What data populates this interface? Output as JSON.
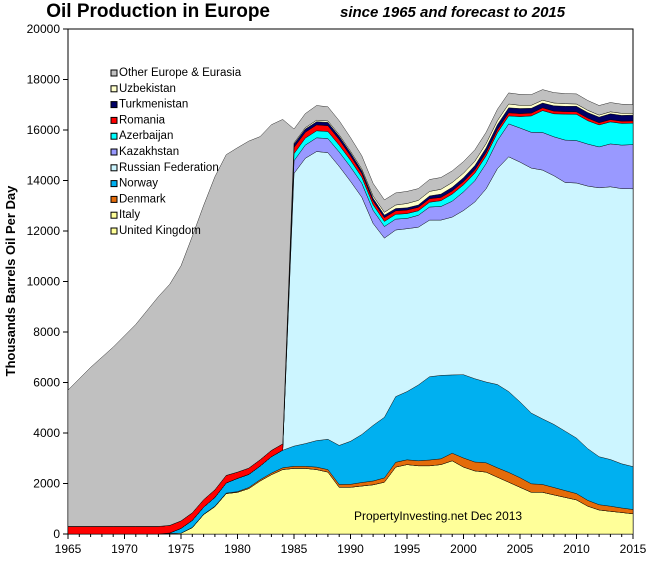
{
  "chart_data": {
    "type": "area",
    "stacked": true,
    "title": "Oil Production in Europe",
    "subtitle": "since 1965 and forecast to 2015",
    "ylabel": "Thousands Barrels Oil Per Day",
    "xlabel": "",
    "xlim": [
      1965,
      2015
    ],
    "ylim": [
      0,
      20000
    ],
    "x_ticks": [
      1965,
      1970,
      1975,
      1980,
      1985,
      1990,
      1995,
      2000,
      2005,
      2010,
      2015
    ],
    "y_ticks": [
      0,
      2000,
      4000,
      6000,
      8000,
      10000,
      12000,
      14000,
      16000,
      18000,
      20000
    ],
    "grid": false,
    "legend_position": "top-left",
    "annotation": "PropertyInvesting.net  Dec 2013",
    "x": [
      1965,
      1967,
      1969,
      1971,
      1973,
      1974,
      1975,
      1976,
      1977,
      1978,
      1979,
      1980,
      1981,
      1982,
      1983,
      1984,
      1985,
      1986,
      1987,
      1988,
      1989,
      1990,
      1991,
      1992,
      1993,
      1994,
      1995,
      1996,
      1997,
      1998,
      1999,
      2000,
      2001,
      2002,
      2003,
      2004,
      2005,
      2006,
      2007,
      2008,
      2009,
      2010,
      2011,
      2012,
      2013,
      2014,
      2015
    ],
    "series": [
      {
        "name": "United Kingdom",
        "color": "#ffff99",
        "values": [
          0,
          0,
          0,
          0,
          0,
          20,
          30,
          250,
          770,
          1080,
          1600,
          1650,
          1800,
          2100,
          2350,
          2550,
          2600,
          2600,
          2550,
          2450,
          1850,
          1850,
          1900,
          1950,
          2050,
          2650,
          2750,
          2700,
          2700,
          2750,
          2900,
          2650,
          2500,
          2450,
          2250,
          2050,
          1850,
          1650,
          1650,
          1550,
          1450,
          1350,
          1100,
          950,
          900,
          850,
          800
        ]
      },
      {
        "name": "Italy",
        "color": "#ffff99",
        "values": [
          0,
          0,
          0,
          0,
          0,
          0,
          0,
          0,
          0,
          0,
          0,
          0,
          0,
          0,
          0,
          0,
          0,
          0,
          0,
          0,
          0,
          0,
          0,
          0,
          0,
          0,
          0,
          0,
          0,
          0,
          0,
          0,
          0,
          0,
          0,
          0,
          0,
          0,
          0,
          0,
          0,
          0,
          0,
          0,
          0,
          0,
          0
        ]
      },
      {
        "name": "Denmark",
        "color": "#e46c0a",
        "values": [
          0,
          0,
          0,
          0,
          0,
          0,
          0,
          10,
          10,
          20,
          20,
          30,
          40,
          50,
          60,
          70,
          80,
          80,
          100,
          100,
          110,
          120,
          140,
          150,
          170,
          190,
          190,
          200,
          230,
          230,
          300,
          360,
          350,
          370,
          370,
          390,
          380,
          340,
          310,
          290,
          270,
          250,
          230,
          210,
          200,
          180,
          170
        ]
      },
      {
        "name": "Norway",
        "color": "#00b0f0",
        "values": [
          0,
          0,
          0,
          0,
          0,
          20,
          190,
          280,
          280,
          350,
          400,
          520,
          520,
          540,
          650,
          700,
          800,
          900,
          1050,
          1200,
          1550,
          1700,
          1900,
          2200,
          2400,
          2600,
          2700,
          3000,
          3300,
          3300,
          3100,
          3300,
          3300,
          3200,
          3300,
          3200,
          3000,
          2800,
          2600,
          2500,
          2350,
          2200,
          2050,
          1900,
          1850,
          1750,
          1700
        ]
      },
      {
        "name": "Russian Federation",
        "color": "#ccf5ff",
        "values": [
          0,
          0,
          0,
          0,
          0,
          0,
          0,
          0,
          0,
          0,
          0,
          0,
          0,
          0,
          0,
          0,
          10800,
          11300,
          11450,
          11350,
          11050,
          10300,
          9400,
          8000,
          7100,
          6600,
          6450,
          6250,
          6200,
          6150,
          6250,
          6500,
          7000,
          7650,
          8550,
          9300,
          9500,
          9700,
          9850,
          9850,
          9850,
          10100,
          10400,
          10650,
          10800,
          10900,
          11000
        ]
      },
      {
        "name": "Kazakhstan",
        "color": "#9999ff",
        "values": [
          0,
          0,
          0,
          0,
          0,
          0,
          0,
          0,
          0,
          0,
          0,
          0,
          0,
          0,
          0,
          0,
          500,
          520,
          540,
          560,
          570,
          570,
          550,
          520,
          460,
          430,
          410,
          470,
          520,
          540,
          630,
          740,
          840,
          1000,
          1110,
          1300,
          1350,
          1420,
          1490,
          1540,
          1680,
          1680,
          1660,
          1620,
          1700,
          1720,
          1750
        ]
      },
      {
        "name": "Azerbaijan",
        "color": "#00ffff",
        "values": [
          0,
          0,
          0,
          0,
          0,
          0,
          0,
          0,
          0,
          0,
          0,
          0,
          0,
          0,
          0,
          0,
          280,
          280,
          280,
          280,
          270,
          260,
          240,
          220,
          200,
          190,
          190,
          180,
          190,
          230,
          280,
          280,
          300,
          310,
          310,
          320,
          450,
          650,
          870,
          910,
          1030,
          1040,
          930,
          870,
          870,
          860,
          850
        ]
      },
      {
        "name": "Romania",
        "color": "#ff0000",
        "values": [
          300,
          300,
          300,
          300,
          300,
          300,
          300,
          300,
          300,
          300,
          300,
          250,
          250,
          250,
          250,
          250,
          250,
          230,
          230,
          230,
          220,
          180,
          150,
          150,
          150,
          140,
          140,
          140,
          140,
          130,
          130,
          130,
          130,
          130,
          120,
          120,
          120,
          110,
          110,
          110,
          100,
          100,
          100,
          90,
          90,
          90,
          90
        ]
      },
      {
        "name": "Turkmenistan",
        "color": "#000066",
        "values": [
          0,
          0,
          0,
          0,
          0,
          0,
          0,
          0,
          0,
          0,
          0,
          0,
          0,
          0,
          0,
          0,
          130,
          130,
          130,
          130,
          130,
          120,
          110,
          110,
          100,
          90,
          90,
          90,
          110,
          130,
          140,
          150,
          170,
          180,
          200,
          200,
          200,
          190,
          190,
          210,
          210,
          220,
          220,
          220,
          230,
          230,
          230
        ]
      },
      {
        "name": "Uzbekistan",
        "color": "#ffffcc",
        "values": [
          0,
          0,
          0,
          0,
          0,
          0,
          0,
          0,
          0,
          0,
          0,
          0,
          0,
          0,
          0,
          0,
          50,
          50,
          60,
          60,
          60,
          60,
          70,
          90,
          110,
          140,
          170,
          180,
          180,
          190,
          190,
          180,
          170,
          170,
          160,
          150,
          130,
          120,
          110,
          110,
          100,
          90,
          90,
          80,
          80,
          80,
          70
        ]
      },
      {
        "name": "Other Europe & Eurasia",
        "color": "#c0c0c0",
        "values": [
          5400,
          6300,
          7100,
          8000,
          9100,
          9550,
          10100,
          10950,
          11650,
          12400,
          12700,
          12850,
          12950,
          12800,
          12900,
          12850,
          550,
          560,
          580,
          560,
          560,
          540,
          520,
          500,
          490,
          480,
          480,
          470,
          470,
          470,
          460,
          460,
          450,
          450,
          450,
          440,
          430,
          420,
          420,
          410,
          400,
          400,
          390,
          380,
          370,
          360,
          350
        ]
      }
    ]
  }
}
